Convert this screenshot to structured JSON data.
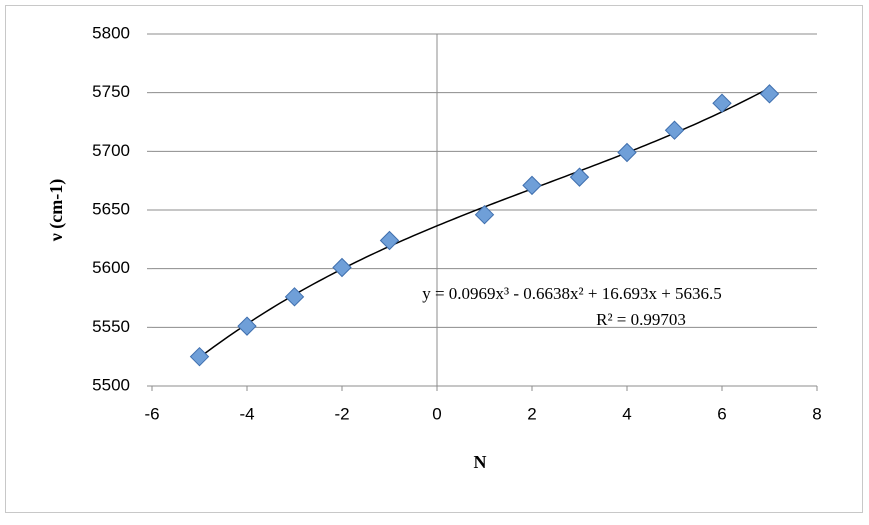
{
  "chart_data": {
    "type": "scatter",
    "x_label": "N",
    "y_label": "ν (cm-1)",
    "x": [
      -5,
      -4,
      -3,
      -2,
      -1,
      1,
      2,
      3,
      4,
      5,
      6,
      7
    ],
    "series": [
      {
        "color": "#6f9fd8",
        "values": [
          5525,
          5551,
          5576,
          5601,
          5624,
          5646,
          5671,
          5678,
          5699,
          5718,
          5741,
          5749
        ]
      }
    ],
    "xlim": [
      -6,
      8
    ],
    "xticks": [
      -6,
      -4,
      -2,
      0,
      2,
      4,
      6,
      8
    ],
    "ylim": [
      5500,
      5800
    ],
    "yticks": [
      5500,
      5550,
      5600,
      5650,
      5700,
      5750,
      5800
    ],
    "grid": true,
    "trendline": {
      "coefficients": [
        0.0969,
        -0.6638,
        16.693,
        5636.5
      ],
      "equation": "y = 0.0969x³ - 0.6638x² + 16.693x + 5636.5",
      "r_squared": "R² = 0.99703"
    }
  }
}
